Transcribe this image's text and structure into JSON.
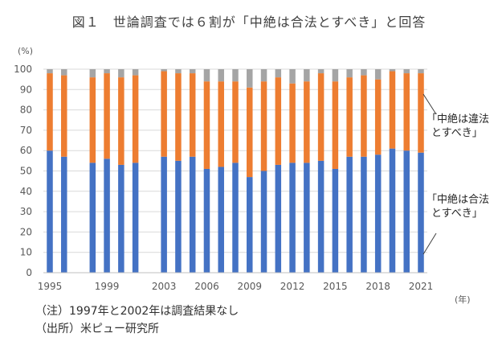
{
  "title": "図１　世論調査では６割が「中絶は合法とすべき」と回答",
  "chart_data": {
    "type": "bar",
    "stacked": true,
    "y_unit": "(%)",
    "x_unit": "(年)",
    "ylim": [
      0,
      100
    ],
    "yticks": [
      0,
      10,
      20,
      30,
      40,
      50,
      60,
      70,
      80,
      90,
      100
    ],
    "x_tick_labels": [
      "1995",
      "1999",
      "2003",
      "2006",
      "2009",
      "2012",
      "2015",
      "2018",
      "2021"
    ],
    "grid": true,
    "categories": [
      "1995",
      "1996",
      "1998",
      "1999",
      "2000",
      "2001",
      "2003",
      "2004",
      "2005",
      "2006",
      "2007",
      "2008",
      "2009",
      "2010",
      "2011",
      "2012",
      "2013",
      "2014",
      "2015",
      "2016",
      "2017",
      "2018",
      "2019",
      "2020",
      "2021"
    ],
    "series": [
      {
        "name": "「中絶は合法とすべき」",
        "color": "#4472C4",
        "values": [
          60,
          57,
          54,
          56,
          53,
          54,
          57,
          55,
          57,
          51,
          52,
          54,
          47,
          50,
          53,
          54,
          54,
          55,
          51,
          57,
          57,
          58,
          61,
          60,
          59
        ]
      },
      {
        "name": "「中絶は違法とすべき」",
        "color": "#ED7D31",
        "values": [
          38,
          40,
          42,
          42,
          43,
          43,
          42,
          43,
          41,
          43,
          42,
          40,
          44,
          44,
          43,
          39,
          40,
          43,
          43,
          39,
          40,
          37,
          38,
          38,
          39
        ]
      },
      {
        "color": "#A5A5A5",
        "values": [
          2,
          3,
          4,
          2,
          4,
          3,
          1,
          2,
          2,
          6,
          6,
          6,
          9,
          6,
          4,
          7,
          6,
          2,
          6,
          4,
          3,
          5,
          1,
          2,
          2
        ]
      }
    ],
    "annotations": [
      {
        "lines": [
          "「中絶は違法",
          "とすべき」"
        ],
        "series": 1
      },
      {
        "lines": [
          "「中絶は合法",
          "とすべき」"
        ],
        "series": 0
      }
    ]
  },
  "notes": [
    "（注）1997年と2002年は調査結果なし",
    "（出所）米ピュー研究所"
  ]
}
